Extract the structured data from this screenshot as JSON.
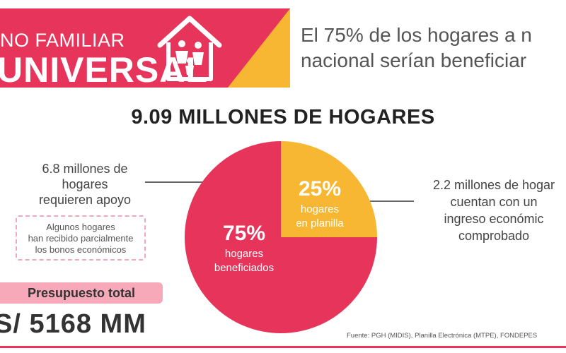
{
  "banner": {
    "line1": "NO FAMILIAR",
    "line2": "UNIVERSAL"
  },
  "headline": {
    "line1": "El 75% de los hogares a n",
    "line2": "nacional serían beneficiar"
  },
  "big_title": "9.09 MILLONES DE HOGARES",
  "left_note": {
    "line1": "6.8 millones de",
    "line2": "hogares",
    "line3": "requieren apoyo"
  },
  "dashed_note": {
    "line1": "Algunos hogares",
    "line2": "han recibido parcialmente",
    "line3": "los bonos económicos"
  },
  "right_note": {
    "line1": "2.2 millones de hogar",
    "line2": "cuentan con un",
    "line3": "ingreso económic",
    "line4": "comprobado"
  },
  "budget": {
    "label": "Presupuesto total",
    "value": "S/ 5168 MM"
  },
  "source": "Fuente: PGH (MIDIS), Planilla Electrónica (MTPE), FONDEPES",
  "colors": {
    "brand_red": "#e6345a",
    "accent_yellow": "#f7b733",
    "light_pink": "#f7a9ba"
  },
  "chart_data": {
    "type": "pie",
    "slices": [
      {
        "value": 75,
        "percent_label": "75%",
        "label_line1": "hogares",
        "label_line2": "beneficiados",
        "color": "#e6345a"
      },
      {
        "value": 25,
        "percent_label": "25%",
        "label_line1": "hogares",
        "label_line2": "en planilla",
        "color": "#f7b733"
      }
    ]
  }
}
